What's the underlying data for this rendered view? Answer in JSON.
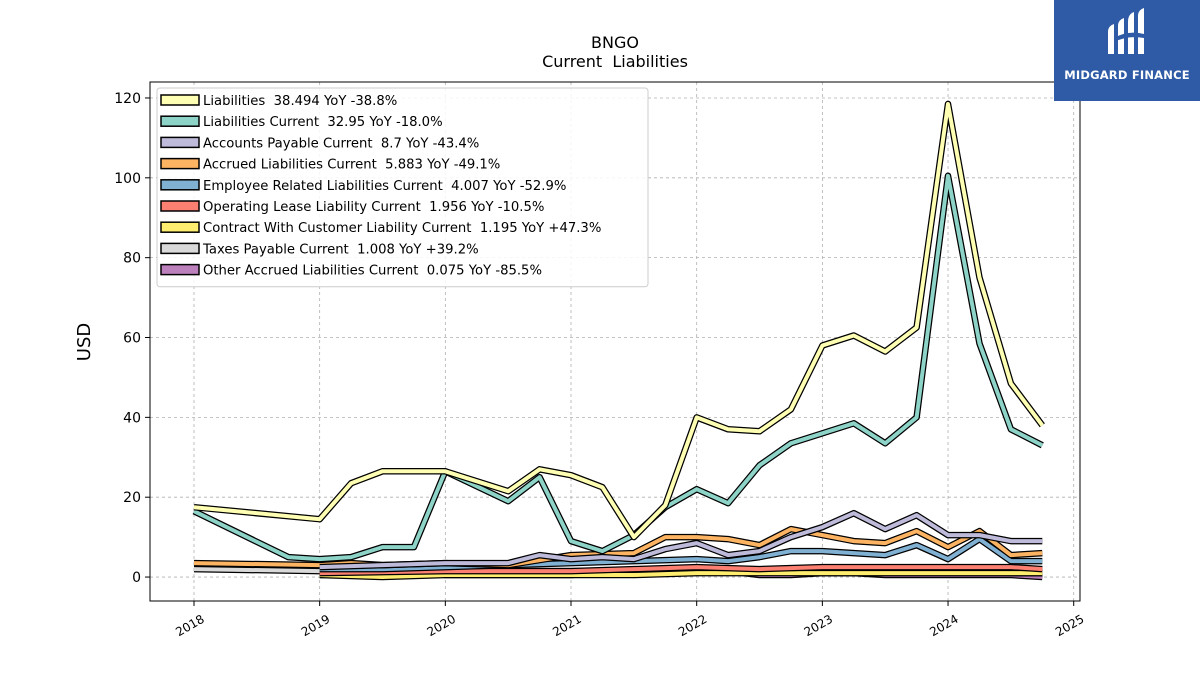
{
  "brand": {
    "name": "MIDGARD FINANCE",
    "bg_color": "#2f5aa6"
  },
  "chart_data": {
    "type": "line",
    "title": "BNGO",
    "subtitle": "Current  Liabilities",
    "xlabel": "",
    "ylabel": "USD",
    "xlim": [
      2017.65,
      2025.05
    ],
    "ylim": [
      -6,
      124
    ],
    "x_ticks": [
      "2018",
      "2019",
      "2020",
      "2021",
      "2022",
      "2023",
      "2024",
      "2025"
    ],
    "y_ticks": [
      "0",
      "20",
      "40",
      "60",
      "80",
      "100",
      "120"
    ],
    "grid": true,
    "legend_position": "top-left",
    "series": [
      {
        "name": "Liabilities",
        "legend": "Liabilities  38.494 YoY -38.8%",
        "color": "#ffffb3",
        "points": [
          [
            2018.0,
            17.5
          ],
          [
            2019.0,
            14.5
          ],
          [
            2019.25,
            23.5
          ],
          [
            2019.5,
            26.5
          ],
          [
            2019.75,
            26.5
          ],
          [
            2020.0,
            26.5
          ],
          [
            2020.5,
            21.5
          ],
          [
            2020.75,
            27.0
          ],
          [
            2021.0,
            25.5
          ],
          [
            2021.25,
            22.5
          ],
          [
            2021.5,
            10.0
          ],
          [
            2021.75,
            18.0
          ],
          [
            2022.0,
            40.0
          ],
          [
            2022.25,
            37.0
          ],
          [
            2022.5,
            36.5
          ],
          [
            2022.75,
            42.0
          ],
          [
            2023.0,
            58.0
          ],
          [
            2023.25,
            60.5
          ],
          [
            2023.5,
            56.5
          ],
          [
            2023.75,
            62.5
          ],
          [
            2024.0,
            118.5
          ],
          [
            2024.25,
            75.0
          ],
          [
            2024.5,
            48.5
          ],
          [
            2024.75,
            38.0
          ]
        ]
      },
      {
        "name": "Liabilities Current",
        "legend": "Liabilities Current  32.95 YoY -18.0%",
        "color": "#8dd3c7",
        "points": [
          [
            2018.0,
            16.5
          ],
          [
            2018.75,
            5.0
          ],
          [
            2019.0,
            4.5
          ],
          [
            2019.25,
            5.0
          ],
          [
            2019.5,
            7.5
          ],
          [
            2019.75,
            7.5
          ],
          [
            2020.0,
            26.5
          ],
          [
            2020.5,
            19.0
          ],
          [
            2020.75,
            25.0
          ],
          [
            2021.0,
            9.0
          ],
          [
            2021.25,
            6.5
          ],
          [
            2021.5,
            10.5
          ],
          [
            2021.75,
            17.5
          ],
          [
            2022.0,
            22.0
          ],
          [
            2022.25,
            18.5
          ],
          [
            2022.5,
            28.0
          ],
          [
            2022.75,
            33.5
          ],
          [
            2023.0,
            36.0
          ],
          [
            2023.25,
            38.5
          ],
          [
            2023.5,
            33.5
          ],
          [
            2023.75,
            40.0
          ],
          [
            2024.0,
            100.5
          ],
          [
            2024.25,
            58.5
          ],
          [
            2024.5,
            37.0
          ],
          [
            2024.75,
            33.0
          ]
        ]
      },
      {
        "name": "Accounts Payable Current",
        "legend": "Accounts Payable Current  8.7 YoY -43.4%",
        "color": "#bebada",
        "points": [
          [
            2019.0,
            2.5
          ],
          [
            2019.5,
            3.0
          ],
          [
            2020.0,
            3.5
          ],
          [
            2020.5,
            3.5
          ],
          [
            2020.75,
            5.5
          ],
          [
            2021.0,
            4.5
          ],
          [
            2021.25,
            5.0
          ],
          [
            2021.5,
            4.5
          ],
          [
            2021.75,
            7.0
          ],
          [
            2022.0,
            8.5
          ],
          [
            2022.25,
            5.5
          ],
          [
            2022.5,
            6.5
          ],
          [
            2022.75,
            10.0
          ],
          [
            2023.0,
            12.5
          ],
          [
            2023.25,
            16.0
          ],
          [
            2023.5,
            12.0
          ],
          [
            2023.75,
            15.5
          ],
          [
            2024.0,
            10.5
          ],
          [
            2024.25,
            10.5
          ],
          [
            2024.5,
            9.0
          ],
          [
            2024.75,
            9.0
          ]
        ]
      },
      {
        "name": "Accrued Liabilities Current",
        "legend": "Accrued Liabilities Current  5.883 YoY -49.1%",
        "color": "#fdb462",
        "points": [
          [
            2018.0,
            3.5
          ],
          [
            2019.0,
            3.0
          ],
          [
            2019.25,
            3.5
          ],
          [
            2019.5,
            3.0
          ],
          [
            2020.0,
            3.5
          ],
          [
            2020.5,
            3.0
          ],
          [
            2021.0,
            5.5
          ],
          [
            2021.5,
            6.0
          ],
          [
            2021.75,
            10.0
          ],
          [
            2022.0,
            10.0
          ],
          [
            2022.25,
            9.5
          ],
          [
            2022.5,
            8.0
          ],
          [
            2022.75,
            12.0
          ],
          [
            2023.0,
            10.5
          ],
          [
            2023.25,
            9.0
          ],
          [
            2023.5,
            8.5
          ],
          [
            2023.75,
            11.5
          ],
          [
            2024.0,
            7.5
          ],
          [
            2024.25,
            11.5
          ],
          [
            2024.5,
            5.5
          ],
          [
            2024.75,
            6.0
          ]
        ]
      },
      {
        "name": "Employee Related Liabilities Current",
        "legend": "Employee Related Liabilities Current  4.007 YoY -52.9%",
        "color": "#80b1d3",
        "points": [
          [
            2019.0,
            2.0
          ],
          [
            2019.5,
            2.0
          ],
          [
            2020.0,
            2.5
          ],
          [
            2020.5,
            3.0
          ],
          [
            2021.0,
            3.5
          ],
          [
            2021.5,
            4.0
          ],
          [
            2022.0,
            4.5
          ],
          [
            2022.25,
            4.0
          ],
          [
            2022.5,
            5.0
          ],
          [
            2022.75,
            6.5
          ],
          [
            2023.0,
            6.5
          ],
          [
            2023.25,
            6.0
          ],
          [
            2023.5,
            5.5
          ],
          [
            2023.75,
            8.0
          ],
          [
            2024.0,
            4.5
          ],
          [
            2024.25,
            9.5
          ],
          [
            2024.5,
            4.0
          ],
          [
            2024.75,
            4.0
          ]
        ]
      },
      {
        "name": "Operating Lease Liability Current",
        "legend": "Operating Lease Liability Current  1.956 YoY -10.5%",
        "color": "#fb8072",
        "points": [
          [
            2019.0,
            1.0
          ],
          [
            2020.0,
            1.5
          ],
          [
            2021.0,
            1.5
          ],
          [
            2021.5,
            2.0
          ],
          [
            2022.0,
            2.5
          ],
          [
            2022.5,
            2.0
          ],
          [
            2023.0,
            2.5
          ],
          [
            2023.5,
            2.5
          ],
          [
            2024.0,
            2.5
          ],
          [
            2024.5,
            2.5
          ],
          [
            2024.75,
            2.0
          ]
        ]
      },
      {
        "name": "Contract With Customer Liability Current",
        "legend": "Contract With Customer Liability Current  1.195 YoY +47.3%",
        "color": "#ffed6f",
        "points": [
          [
            2019.0,
            0.5
          ],
          [
            2019.5,
            0.0
          ],
          [
            2020.0,
            0.5
          ],
          [
            2020.5,
            0.5
          ],
          [
            2021.0,
            0.5
          ],
          [
            2021.5,
            0.5
          ],
          [
            2022.0,
            1.0
          ],
          [
            2022.5,
            1.0
          ],
          [
            2023.0,
            1.0
          ],
          [
            2023.5,
            1.0
          ],
          [
            2024.0,
            1.0
          ],
          [
            2024.5,
            1.0
          ],
          [
            2024.75,
            1.0
          ]
        ]
      },
      {
        "name": "Taxes Payable Current",
        "legend": "Taxes Payable Current  1.008 YoY +39.2%",
        "color": "#d9d9d9",
        "points": [
          [
            2018.0,
            2.0
          ],
          [
            2019.0,
            1.5
          ],
          [
            2020.0,
            1.5
          ],
          [
            2021.0,
            1.5
          ],
          [
            2022.0,
            1.5
          ],
          [
            2023.0,
            1.0
          ],
          [
            2024.0,
            1.0
          ],
          [
            2024.75,
            1.0
          ]
        ]
      },
      {
        "name": "Other Accrued Liabilities Current",
        "legend": "Other Accrued Liabilities Current  0.075 YoY -85.5%",
        "color": "#bc80bd",
        "points": [
          [
            2019.0,
            0.5
          ],
          [
            2019.5,
            1.0
          ],
          [
            2019.75,
            1.5
          ],
          [
            2020.0,
            0.5
          ],
          [
            2020.5,
            0.5
          ],
          [
            2021.0,
            0.5
          ],
          [
            2021.5,
            1.5
          ],
          [
            2022.0,
            2.0
          ],
          [
            2022.25,
            1.5
          ],
          [
            2022.5,
            0.5
          ],
          [
            2022.75,
            0.5
          ],
          [
            2023.0,
            1.0
          ],
          [
            2023.25,
            1.0
          ],
          [
            2023.5,
            0.5
          ],
          [
            2023.75,
            0.5
          ],
          [
            2024.0,
            0.5
          ],
          [
            2024.5,
            0.5
          ],
          [
            2024.75,
            0.0
          ]
        ]
      }
    ]
  }
}
